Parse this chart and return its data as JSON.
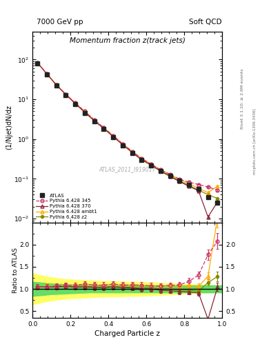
{
  "title_left": "7000 GeV pp",
  "title_right": "Soft QCD",
  "plot_title": "Momentum fraction z(track jets)",
  "xlabel": "Charged Particle z",
  "ylabel_main": "(1/Njet)dN/dz",
  "ylabel_ratio": "Ratio to ATLAS",
  "watermark": "ATLAS_2011_I919017",
  "right_label_top": "Rivet 3.1.10; ≥ 2.6M events",
  "right_label_bottom": "mcplots.cern.ch [arXiv:1306.3436]",
  "xlim": [
    0.0,
    1.0
  ],
  "ylim_main": [
    0.008,
    500.0
  ],
  "ylim_ratio": [
    0.35,
    2.5
  ],
  "atlas_x": [
    0.025,
    0.075,
    0.125,
    0.175,
    0.225,
    0.275,
    0.325,
    0.375,
    0.425,
    0.475,
    0.525,
    0.575,
    0.625,
    0.675,
    0.725,
    0.775,
    0.825,
    0.875,
    0.925,
    0.975
  ],
  "atlas_y": [
    80.0,
    42.0,
    22.0,
    12.5,
    7.5,
    4.5,
    2.8,
    1.8,
    1.1,
    0.7,
    0.45,
    0.3,
    0.22,
    0.16,
    0.12,
    0.09,
    0.07,
    0.055,
    0.035,
    0.025
  ],
  "atlas_yerr": [
    4.0,
    2.0,
    1.0,
    0.6,
    0.35,
    0.22,
    0.14,
    0.09,
    0.055,
    0.035,
    0.022,
    0.015,
    0.011,
    0.008,
    0.006,
    0.005,
    0.004,
    0.003,
    0.002,
    0.002
  ],
  "p345_y": [
    84.0,
    44.0,
    23.5,
    13.5,
    8.1,
    5.0,
    3.05,
    1.95,
    1.22,
    0.76,
    0.49,
    0.325,
    0.235,
    0.17,
    0.13,
    0.098,
    0.082,
    0.072,
    0.062,
    0.052
  ],
  "p345_yerr": [
    3.0,
    1.5,
    0.8,
    0.45,
    0.27,
    0.17,
    0.1,
    0.065,
    0.041,
    0.026,
    0.016,
    0.011,
    0.008,
    0.006,
    0.004,
    0.003,
    0.003,
    0.002,
    0.002,
    0.002
  ],
  "p370_y": [
    84.0,
    44.0,
    23.0,
    13.2,
    7.8,
    4.7,
    2.9,
    1.85,
    1.15,
    0.72,
    0.46,
    0.3,
    0.22,
    0.155,
    0.115,
    0.085,
    0.065,
    0.05,
    0.011,
    0.026
  ],
  "p370_yerr": [
    3.0,
    1.5,
    0.8,
    0.44,
    0.26,
    0.16,
    0.097,
    0.062,
    0.038,
    0.024,
    0.015,
    0.01,
    0.007,
    0.005,
    0.004,
    0.003,
    0.002,
    0.002,
    0.001,
    0.001
  ],
  "pambt1_y": [
    84.0,
    44.5,
    23.5,
    13.5,
    8.1,
    5.0,
    3.05,
    1.95,
    1.22,
    0.76,
    0.49,
    0.325,
    0.235,
    0.168,
    0.128,
    0.095,
    0.075,
    0.058,
    0.045,
    0.065
  ],
  "pambt1_yerr": [
    3.0,
    1.5,
    0.8,
    0.45,
    0.27,
    0.17,
    0.1,
    0.065,
    0.041,
    0.026,
    0.016,
    0.011,
    0.008,
    0.006,
    0.004,
    0.003,
    0.003,
    0.002,
    0.002,
    0.002
  ],
  "pz2_y": [
    84.0,
    44.0,
    23.0,
    13.3,
    7.9,
    4.8,
    2.92,
    1.87,
    1.16,
    0.73,
    0.465,
    0.31,
    0.225,
    0.16,
    0.12,
    0.088,
    0.068,
    0.052,
    0.04,
    0.032
  ],
  "pz2_yerr": [
    3.0,
    1.5,
    0.77,
    0.44,
    0.26,
    0.16,
    0.098,
    0.063,
    0.039,
    0.024,
    0.016,
    0.01,
    0.008,
    0.005,
    0.004,
    0.003,
    0.002,
    0.002,
    0.001,
    0.001
  ],
  "color_345": "#cc3366",
  "color_370": "#882233",
  "color_ambt1": "#ffaa00",
  "color_z2": "#888800",
  "color_atlas": "#222222",
  "ratio_yticks": [
    0.5,
    1.0,
    1.5,
    2.0
  ],
  "band_x": [
    0.0,
    0.05,
    0.1,
    0.15,
    0.2,
    0.25,
    0.3,
    0.35,
    0.4,
    0.45,
    0.5,
    0.55,
    0.6,
    0.65,
    0.7,
    0.75,
    0.8,
    0.85,
    0.9,
    0.95,
    1.0
  ],
  "band_green_lo": [
    0.84,
    0.86,
    0.88,
    0.89,
    0.9,
    0.91,
    0.92,
    0.92,
    0.92,
    0.92,
    0.92,
    0.92,
    0.92,
    0.92,
    0.92,
    0.92,
    0.92,
    0.92,
    0.92,
    0.92,
    0.92
  ],
  "band_green_hi": [
    1.16,
    1.14,
    1.12,
    1.11,
    1.1,
    1.09,
    1.08,
    1.08,
    1.08,
    1.08,
    1.08,
    1.08,
    1.08,
    1.08,
    1.08,
    1.08,
    1.08,
    1.08,
    1.08,
    1.08,
    1.08
  ],
  "band_yellow_lo": [
    0.65,
    0.7,
    0.74,
    0.77,
    0.79,
    0.8,
    0.81,
    0.82,
    0.83,
    0.83,
    0.84,
    0.84,
    0.85,
    0.86,
    0.87,
    0.88,
    0.89,
    0.9,
    0.91,
    0.92,
    0.93
  ],
  "band_yellow_hi": [
    1.35,
    1.3,
    1.26,
    1.23,
    1.21,
    1.2,
    1.19,
    1.18,
    1.17,
    1.17,
    1.16,
    1.16,
    1.15,
    1.14,
    1.13,
    1.12,
    1.11,
    1.1,
    1.09,
    1.08,
    1.07
  ]
}
